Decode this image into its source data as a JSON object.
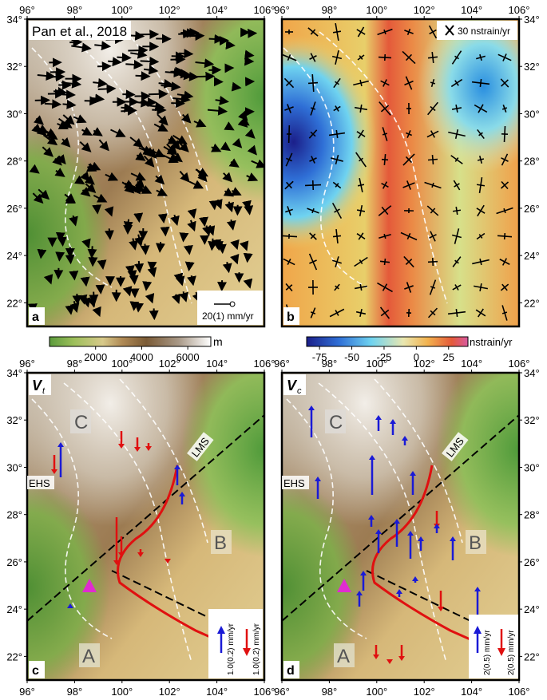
{
  "axes": {
    "lon_ticks": [
      "96°",
      "98°",
      "100°",
      "102°",
      "104°",
      "106°"
    ],
    "lat_ticks": [
      "34°",
      "32°",
      "30°",
      "28°",
      "26°",
      "24°",
      "22°"
    ],
    "lon_range": [
      96,
      106
    ],
    "lat_range": [
      21,
      34
    ]
  },
  "panel_a": {
    "letter": "a",
    "title": "Pan et al., 2018",
    "scale_label": "20(1) mm/yr",
    "colorbar": {
      "unit": "m",
      "ticks": [
        "2000",
        "4000",
        "6000"
      ],
      "range": [
        0,
        7000
      ],
      "colors": [
        "#5b9b3b",
        "#9cbf5a",
        "#d7c98a",
        "#b08a55",
        "#7a5a35",
        "#a89886",
        "#ffffff"
      ]
    }
  },
  "panel_b": {
    "letter": "b",
    "scale_label": "30 nstrain/yr",
    "colorbar": {
      "unit": "nstrain/yr",
      "ticks": [
        "-75",
        "-50",
        "-25",
        "0",
        "25"
      ],
      "range": [
        -85,
        40
      ],
      "colors": [
        "#1b1f8a",
        "#2f6fd6",
        "#6fd3f0",
        "#e9e7b0",
        "#f2b24e",
        "#e45a3a",
        "#d85aa0"
      ]
    }
  },
  "panel_c": {
    "letter": "c",
    "symbol": "V",
    "subscript": "t",
    "region_labels": [
      "A",
      "B",
      "C"
    ],
    "fault_labels": [
      "EHS",
      "LMS"
    ],
    "legend": {
      "up": "1.0(0.2) mm/yr",
      "down": "1.0(0.2) mm/yr"
    }
  },
  "panel_d": {
    "letter": "d",
    "symbol": "V",
    "subscript": "c",
    "region_labels": [
      "A",
      "B",
      "C"
    ],
    "fault_labels": [
      "EHS",
      "LMS"
    ],
    "legend": {
      "up": "2(0.5) mm/yr",
      "down": "2(0.5) mm/yr"
    }
  },
  "colors": {
    "uplift": "#1a1ad6",
    "subsidence": "#e01010",
    "fault": "#ffffff",
    "dashed_line": "#000000",
    "marker": "#e02bd0"
  }
}
